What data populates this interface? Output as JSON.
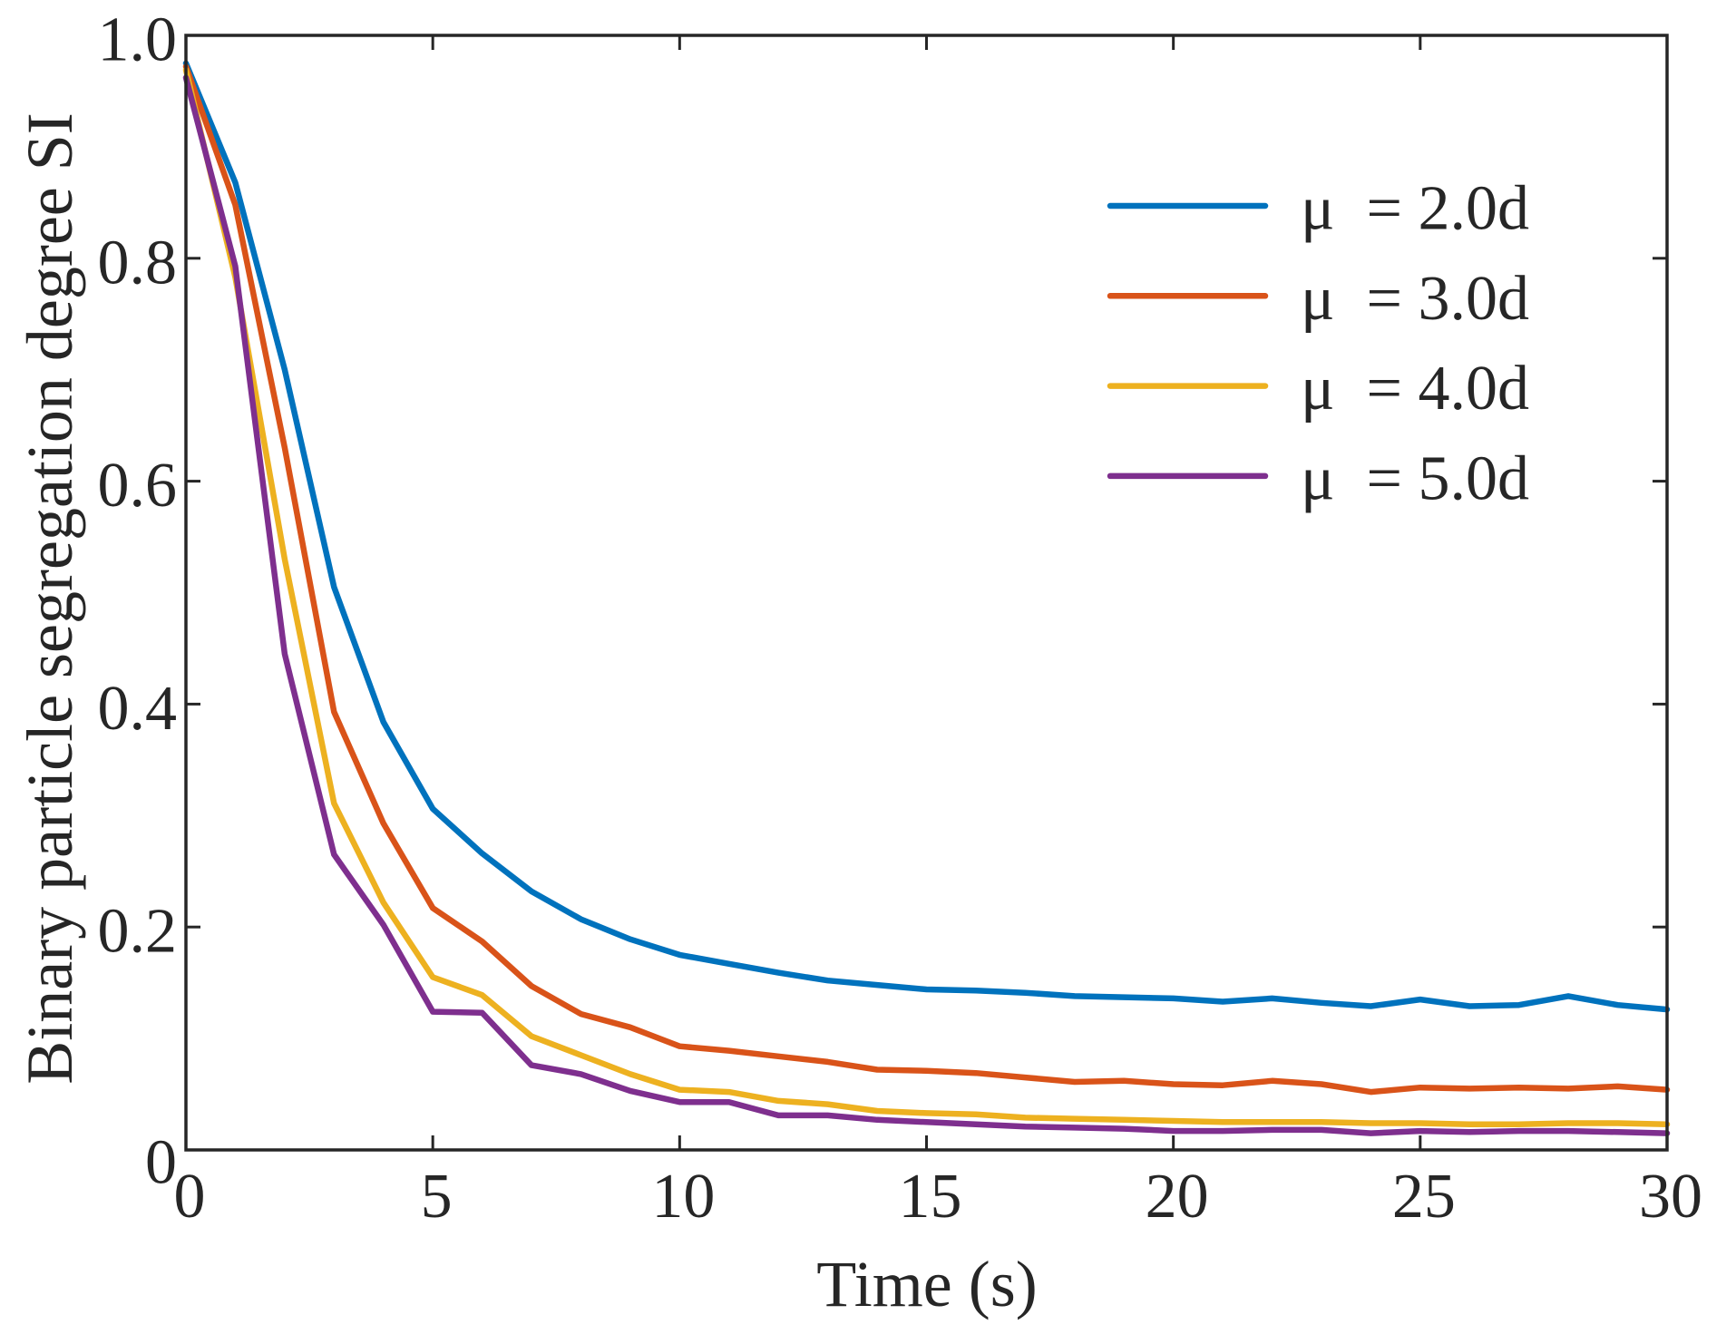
{
  "chart_data": {
    "type": "line",
    "title": "",
    "xlabel": "Time (s)",
    "ylabel": "Binary particle segregation degree SI",
    "xlim": [
      0,
      30
    ],
    "ylim": [
      0,
      1
    ],
    "grid": false,
    "legend_position": "top-right",
    "xticks": [
      0,
      5,
      10,
      15,
      20,
      25,
      30
    ],
    "xtick_labels": [
      "0",
      "5",
      "10",
      "15",
      "20",
      "25",
      "30"
    ],
    "yticks": [
      0,
      0.2,
      0.4,
      0.6,
      0.8,
      1.0
    ],
    "ytick_labels": [
      "0",
      "0.2",
      "0.4",
      "0.6",
      "0.8",
      "1.0"
    ],
    "x": [
      0,
      1,
      2,
      3,
      4,
      5,
      6,
      7,
      8,
      9,
      10,
      11,
      12,
      13,
      14,
      15,
      16,
      17,
      18,
      19,
      20,
      21,
      22,
      23,
      24,
      25,
      26,
      27,
      28,
      29,
      30
    ],
    "series": [
      {
        "name": "μ  = 2.0d",
        "color": "#0072BD",
        "values": [
          0.975,
          0.868,
          0.7,
          0.505,
          0.384,
          0.306,
          0.266,
          0.232,
          0.207,
          0.189,
          0.175,
          0.167,
          0.159,
          0.152,
          0.148,
          0.144,
          0.143,
          0.141,
          0.138,
          0.137,
          0.136,
          0.133,
          0.136,
          0.132,
          0.129,
          0.135,
          0.129,
          0.13,
          0.138,
          0.13,
          0.126
        ]
      },
      {
        "name": "μ  = 3.0d",
        "color": "#D95319",
        "values": [
          0.972,
          0.848,
          0.63,
          0.393,
          0.293,
          0.217,
          0.187,
          0.147,
          0.122,
          0.11,
          0.093,
          0.089,
          0.084,
          0.079,
          0.072,
          0.071,
          0.069,
          0.065,
          0.061,
          0.062,
          0.059,
          0.058,
          0.062,
          0.059,
          0.052,
          0.056,
          0.055,
          0.056,
          0.055,
          0.057,
          0.054
        ]
      },
      {
        "name": "μ  = 4.0d",
        "color": "#EDB120",
        "values": [
          0.969,
          0.783,
          0.53,
          0.311,
          0.222,
          0.155,
          0.139,
          0.102,
          0.085,
          0.068,
          0.054,
          0.052,
          0.044,
          0.041,
          0.035,
          0.033,
          0.032,
          0.029,
          0.028,
          0.027,
          0.026,
          0.025,
          0.025,
          0.025,
          0.024,
          0.024,
          0.023,
          0.023,
          0.024,
          0.024,
          0.023
        ]
      },
      {
        "name": "μ  = 5.0d",
        "color": "#7E2F8E",
        "values": [
          0.962,
          0.793,
          0.445,
          0.265,
          0.202,
          0.124,
          0.123,
          0.076,
          0.068,
          0.053,
          0.043,
          0.043,
          0.031,
          0.031,
          0.027,
          0.025,
          0.023,
          0.021,
          0.02,
          0.019,
          0.017,
          0.017,
          0.018,
          0.018,
          0.015,
          0.017,
          0.016,
          0.017,
          0.017,
          0.016,
          0.015
        ]
      }
    ]
  }
}
